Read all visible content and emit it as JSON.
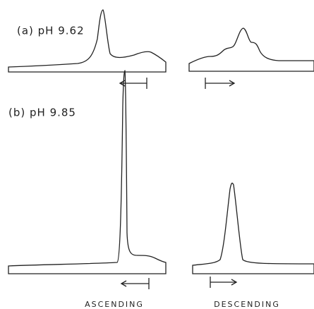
{
  "panels": [
    {
      "label": "(a) pH 9.62"
    },
    {
      "label": "(b) pH 9.85"
    }
  ],
  "columns": [
    "ASCENDING",
    "DESCENDING"
  ]
}
